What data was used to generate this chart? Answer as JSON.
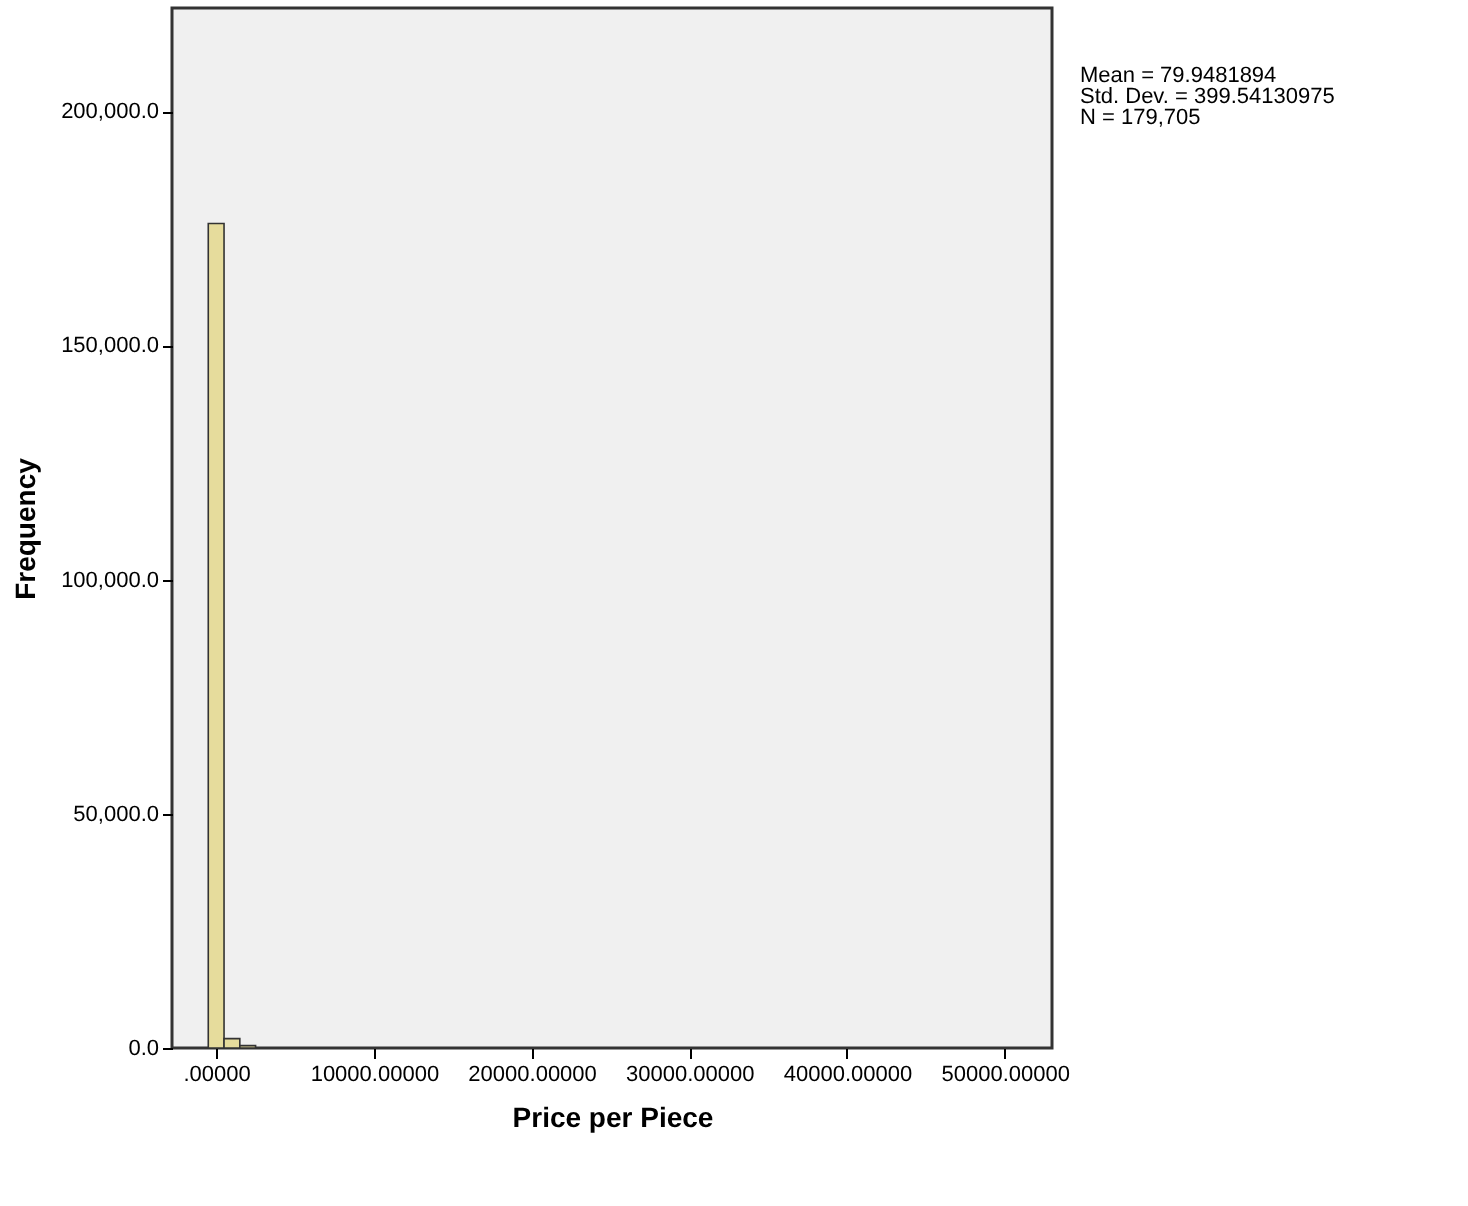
{
  "chart_data": {
    "type": "histogram",
    "xlabel": "Price per Piece",
    "ylabel": "Frequency",
    "color": "#e6dc9c",
    "bins": [
      -500,
      500,
      1500,
      2500
    ],
    "values": [
      176000,
      2000,
      500
    ],
    "xlim": [
      -2800,
      53000
    ],
    "ylim": [
      0,
      222000
    ],
    "xticks": [
      {
        "value": 0,
        "label": ".00000"
      },
      {
        "value": 10000,
        "label": "10000.00000"
      },
      {
        "value": 20000,
        "label": "20000.00000"
      },
      {
        "value": 30000,
        "label": "30000.00000"
      },
      {
        "value": 40000,
        "label": "40000.00000"
      },
      {
        "value": 50000,
        "label": "50000.00000"
      }
    ],
    "yticks": [
      {
        "value": 0,
        "label": "0.0"
      },
      {
        "value": 50000,
        "label": "50,000.0"
      },
      {
        "value": 100000,
        "label": "100,000.0"
      },
      {
        "value": 150000,
        "label": "150,000.0"
      },
      {
        "value": 200000,
        "label": "200,000.0"
      }
    ],
    "grid": false,
    "annotations": [
      "Mean = 79.9481894",
      "Std. Dev. = 399.54130975",
      "N = 179,705"
    ]
  }
}
